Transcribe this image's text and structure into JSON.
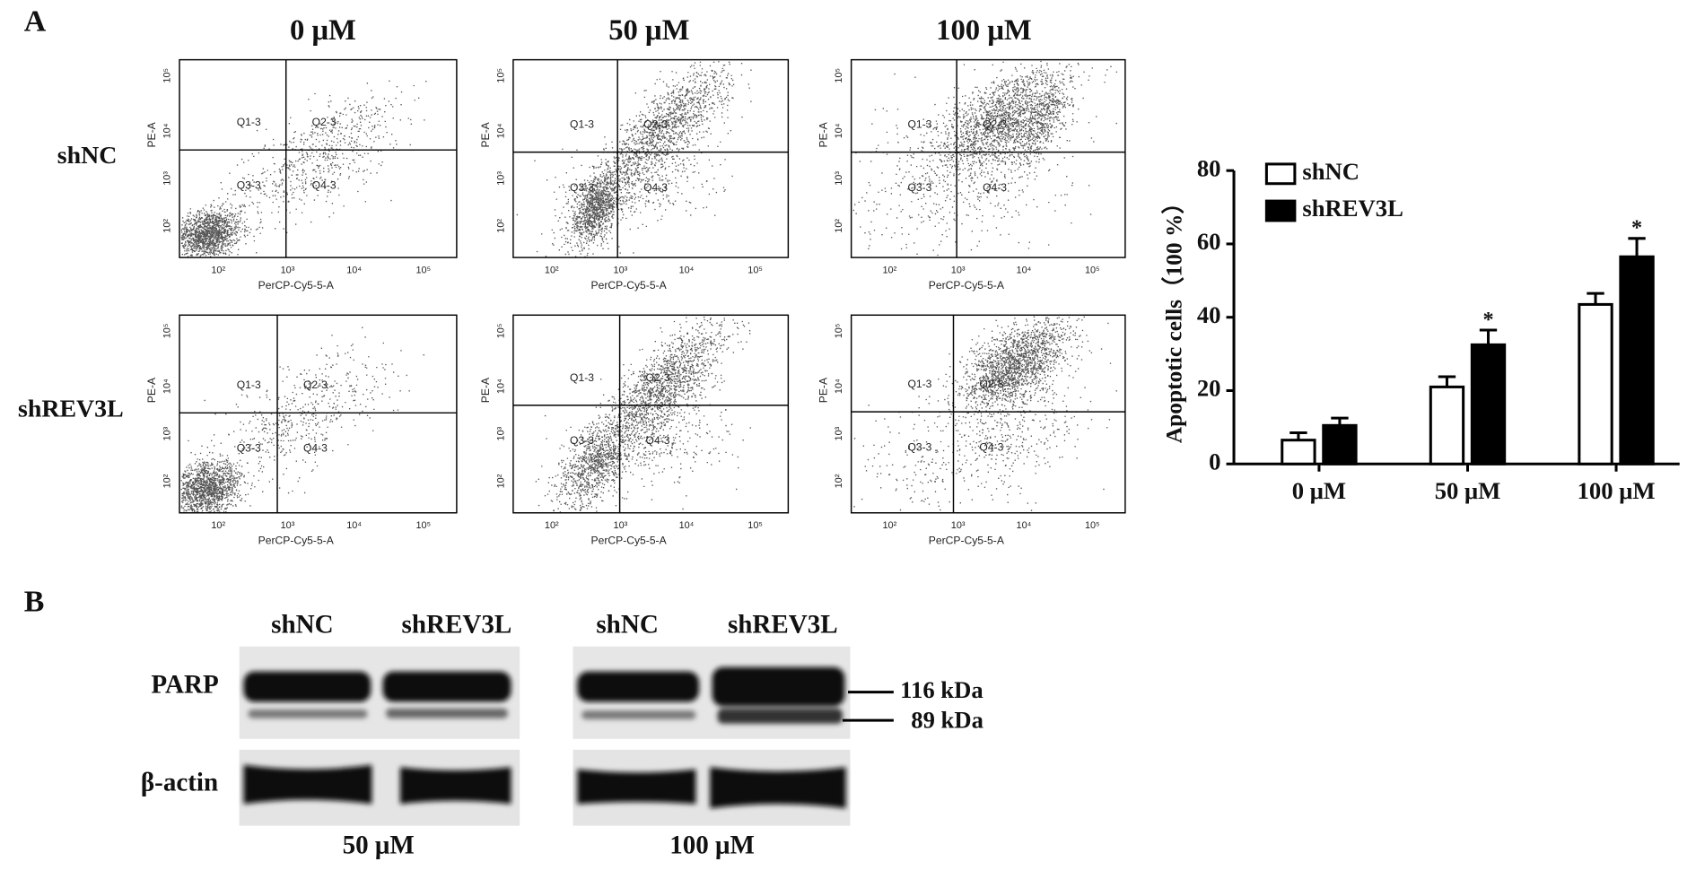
{
  "panel_labels": [
    "A",
    "B"
  ],
  "flow": {
    "concentrations": [
      "0 μM",
      "50 μM",
      "100 μM"
    ],
    "groups": [
      "shNC",
      "shREV3L"
    ],
    "quadrants": [
      "Q1-3",
      "Q2-3",
      "Q3-3",
      "Q4-3"
    ],
    "x_axis_label": "PerCP-Cy5-5-A",
    "y_axis_label": "PE-A",
    "ticks": [
      "10²",
      "10³",
      "10⁴",
      "10⁵"
    ]
  },
  "chart_data": {
    "type": "bar",
    "ylabel": "Apoptotic cells（100 %）",
    "categories": [
      "0 μM",
      "50 μM",
      "100 μM"
    ],
    "series": [
      {
        "name": "shNC",
        "color": "#ffffff",
        "values": [
          6.5,
          21,
          43.5
        ],
        "errors": [
          2,
          2.8,
          3
        ]
      },
      {
        "name": "shREV3L",
        "color": "#000000",
        "values": [
          10.5,
          32.5,
          56.5
        ],
        "errors": [
          2,
          4,
          5
        ],
        "significance": [
          null,
          "*",
          "*"
        ]
      }
    ],
    "ylim": [
      0,
      80
    ],
    "yticks": [
      0,
      20,
      40,
      60,
      80
    ]
  },
  "western": {
    "lanes": [
      "shNC",
      "shREV3L",
      "shNC",
      "shREV3L"
    ],
    "proteins": [
      "PARP",
      "β-actin"
    ],
    "markers": [
      "116 kDa",
      "89 kDa"
    ],
    "conditions": [
      "50 μM",
      "100 μM"
    ]
  }
}
